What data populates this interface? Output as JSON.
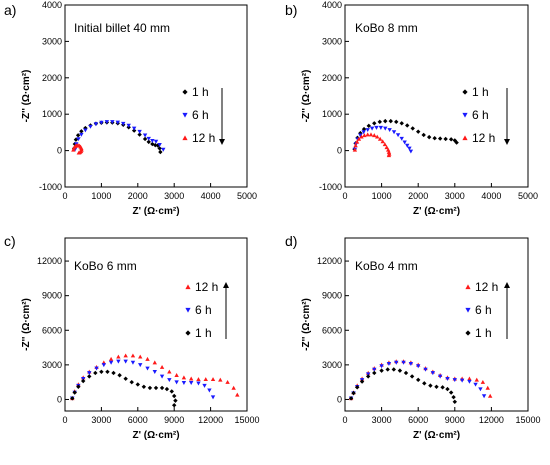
{
  "chart_data": [
    {
      "type": "scatter",
      "panel_label": "a)",
      "title": "Initial billet 40 mm",
      "xlabel": "Z' (Ω·cm²)",
      "ylabel": "-Z'' (Ω·cm²)",
      "xlim": [
        0,
        5000
      ],
      "ylim": [
        -1000,
        4000
      ],
      "xticks": [
        0,
        1000,
        2000,
        3000,
        4000,
        5000
      ],
      "yticks": [
        -1000,
        0,
        1000,
        2000,
        3000,
        4000
      ],
      "legend": "right",
      "legend_arrow": "down",
      "series": [
        {
          "name": "1 h",
          "color": "#000000",
          "marker": "diamond",
          "x": [
            250,
            270,
            300,
            360,
            450,
            560,
            700,
            850,
            1000,
            1150,
            1300,
            1450,
            1600,
            1750,
            1900,
            2050,
            2200,
            2300,
            2400,
            2480,
            2550,
            2600,
            2620
          ],
          "y": [
            60,
            180,
            300,
            420,
            530,
            620,
            690,
            740,
            765,
            775,
            770,
            750,
            710,
            640,
            550,
            440,
            320,
            240,
            180,
            150,
            140,
            60,
            -40
          ]
        },
        {
          "name": "6 h",
          "color": "#1a1aff",
          "marker": "triangle-down",
          "x": [
            280,
            310,
            370,
            450,
            560,
            700,
            850,
            1000,
            1150,
            1300,
            1450,
            1600,
            1750,
            1900,
            2050,
            2200,
            2300,
            2400,
            2500,
            2600,
            2700
          ],
          "y": [
            40,
            180,
            320,
            440,
            560,
            660,
            730,
            770,
            790,
            790,
            775,
            740,
            690,
            610,
            520,
            420,
            330,
            270,
            250,
            160,
            30
          ]
        },
        {
          "name": "12 h",
          "color": "#ff1a1a",
          "marker": "triangle-up",
          "x": [
            230,
            250,
            280,
            320,
            360,
            400,
            430,
            450,
            455,
            440,
            410,
            380
          ],
          "y": [
            20,
            80,
            120,
            140,
            145,
            130,
            100,
            60,
            20,
            -20,
            -50,
            -60
          ]
        }
      ]
    },
    {
      "type": "scatter",
      "panel_label": "b)",
      "title": "KoBo 8 mm",
      "xlabel": "Z' (Ω·cm²)",
      "ylabel": "-Z'' (Ω·cm²)",
      "xlim": [
        0,
        5000
      ],
      "ylim": [
        -1000,
        4000
      ],
      "xticks": [
        0,
        1000,
        2000,
        3000,
        4000,
        5000
      ],
      "yticks": [
        -1000,
        0,
        1000,
        2000,
        3000,
        4000
      ],
      "legend": "right",
      "legend_arrow": "down",
      "series": [
        {
          "name": "1 h",
          "color": "#000000",
          "marker": "diamond",
          "x": [
            260,
            290,
            340,
            420,
            520,
            650,
            800,
            950,
            1100,
            1250,
            1400,
            1550,
            1700,
            1850,
            2000,
            2150,
            2300,
            2450,
            2600,
            2750,
            2900,
            3000,
            3050
          ],
          "y": [
            40,
            200,
            350,
            480,
            590,
            680,
            750,
            790,
            810,
            810,
            790,
            750,
            690,
            610,
            520,
            430,
            370,
            340,
            330,
            320,
            310,
            280,
            220
          ]
        },
        {
          "name": "6 h",
          "color": "#1a1aff",
          "marker": "triangle-down",
          "x": [
            270,
            300,
            350,
            420,
            510,
            620,
            740,
            860,
            980,
            1100,
            1220,
            1340,
            1450,
            1550,
            1630,
            1700,
            1760,
            1800
          ],
          "y": [
            30,
            180,
            310,
            420,
            510,
            570,
            610,
            630,
            630,
            610,
            570,
            510,
            430,
            330,
            230,
            140,
            60,
            -20
          ]
        },
        {
          "name": "12 h",
          "color": "#ff1a1a",
          "marker": "triangle-up",
          "x": [
            270,
            290,
            330,
            380,
            450,
            530,
            620,
            710,
            800,
            880,
            960,
            1030,
            1090,
            1140,
            1180,
            1200,
            1210,
            1200
          ],
          "y": [
            20,
            140,
            240,
            320,
            380,
            420,
            440,
            440,
            420,
            380,
            320,
            250,
            170,
            90,
            20,
            -40,
            -90,
            -130
          ]
        }
      ]
    },
    {
      "type": "scatter",
      "panel_label": "c)",
      "title": "KoBo 6 mm",
      "xlabel": "Z' (Ω·cm²)",
      "ylabel": "-Z'' (Ω·cm²)",
      "xlim": [
        0,
        15000
      ],
      "ylim": [
        -1000,
        14000
      ],
      "xticks": [
        0,
        3000,
        6000,
        9000,
        12000,
        15000
      ],
      "yticks": [
        0,
        3000,
        6000,
        9000,
        12000
      ],
      "legend": "right",
      "legend_arrow": "up",
      "series": [
        {
          "name": "12 h",
          "color": "#ff1a1a",
          "marker": "triangle-up",
          "x": [
            600,
            800,
            1100,
            1500,
            2000,
            2600,
            3200,
            3800,
            4400,
            5000,
            5600,
            6200,
            6800,
            7400,
            8000,
            8600,
            9200,
            9800,
            10400,
            11000,
            11600,
            12200,
            12800,
            13400,
            13900,
            14200
          ],
          "y": [
            100,
            700,
            1300,
            1900,
            2400,
            2800,
            3200,
            3500,
            3700,
            3800,
            3800,
            3700,
            3500,
            3200,
            2800,
            2400,
            2100,
            1900,
            1800,
            1750,
            1750,
            1750,
            1700,
            1500,
            1000,
            400
          ]
        },
        {
          "name": "6 h",
          "color": "#1a1aff",
          "marker": "triangle-down",
          "x": [
            600,
            800,
            1100,
            1500,
            2000,
            2600,
            3200,
            3800,
            4400,
            5000,
            5600,
            6200,
            6800,
            7400,
            8000,
            8600,
            9200,
            9800,
            10400,
            11000,
            11500,
            11900,
            12200
          ],
          "y": [
            100,
            600,
            1200,
            1800,
            2300,
            2700,
            3000,
            3200,
            3300,
            3300,
            3200,
            3000,
            2700,
            2400,
            2000,
            1700,
            1500,
            1450,
            1450,
            1400,
            1200,
            800,
            200
          ]
        },
        {
          "name": "1 h",
          "color": "#000000",
          "marker": "diamond",
          "x": [
            600,
            800,
            1100,
            1500,
            2000,
            2500,
            3000,
            3500,
            4000,
            4500,
            5000,
            5500,
            6000,
            6500,
            7000,
            7500,
            8000,
            8400,
            8800,
            9000,
            9100,
            9000
          ],
          "y": [
            100,
            600,
            1100,
            1600,
            2000,
            2300,
            2400,
            2400,
            2300,
            2100,
            1800,
            1500,
            1300,
            1100,
            1000,
            1000,
            1000,
            900,
            700,
            300,
            -100,
            -500
          ]
        }
      ]
    },
    {
      "type": "scatter",
      "panel_label": "d)",
      "title": "KoBo 4 mm",
      "xlabel": "Z' (Ω·cm²)",
      "ylabel": "-Z'' (Ω·cm²)",
      "xlim": [
        0,
        15000
      ],
      "ylim": [
        -1000,
        14000
      ],
      "xticks": [
        0,
        3000,
        6000,
        9000,
        12000,
        15000
      ],
      "yticks": [
        0,
        3000,
        6000,
        9000,
        12000
      ],
      "legend": "right",
      "legend_arrow": "up",
      "series": [
        {
          "name": "12 h",
          "color": "#ff1a1a",
          "marker": "triangle-up",
          "x": [
            500,
            700,
            1000,
            1400,
            1900,
            2400,
            3000,
            3600,
            4200,
            4800,
            5400,
            6000,
            6600,
            7200,
            7800,
            8400,
            9000,
            9600,
            10200,
            10800,
            11300,
            11700,
            11900
          ],
          "y": [
            100,
            600,
            1200,
            1800,
            2300,
            2700,
            3000,
            3200,
            3300,
            3300,
            3200,
            3000,
            2700,
            2400,
            2100,
            1900,
            1800,
            1800,
            1800,
            1700,
            1500,
            1000,
            300
          ]
        },
        {
          "name": "6 h",
          "color": "#1a1aff",
          "marker": "triangle-down",
          "x": [
            500,
            700,
            1000,
            1400,
            1900,
            2400,
            3000,
            3600,
            4200,
            4800,
            5400,
            6000,
            6600,
            7200,
            7800,
            8400,
            9000,
            9600,
            10200,
            10700,
            11100,
            11400
          ],
          "y": [
            100,
            550,
            1100,
            1700,
            2200,
            2600,
            2900,
            3100,
            3200,
            3200,
            3100,
            2900,
            2600,
            2300,
            2000,
            1800,
            1700,
            1650,
            1550,
            1300,
            900,
            300
          ]
        },
        {
          "name": "1 h",
          "color": "#000000",
          "marker": "diamond",
          "x": [
            500,
            700,
            1000,
            1400,
            1900,
            2400,
            3000,
            3500,
            4000,
            4500,
            5000,
            5500,
            6000,
            6500,
            7000,
            7500,
            8000,
            8400,
            8700,
            8900,
            9000
          ],
          "y": [
            100,
            550,
            1050,
            1550,
            2000,
            2300,
            2500,
            2600,
            2600,
            2500,
            2300,
            2000,
            1700,
            1400,
            1200,
            1100,
            1050,
            900,
            600,
            200,
            -200
          ]
        }
      ]
    }
  ]
}
